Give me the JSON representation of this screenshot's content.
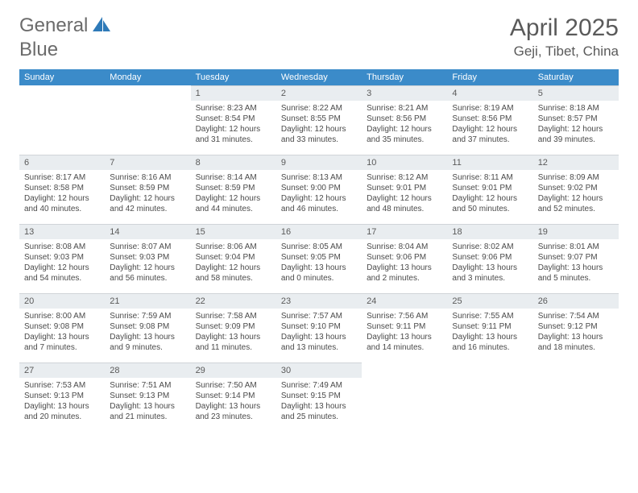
{
  "logo": {
    "text1": "General",
    "text2": "Blue"
  },
  "title": "April 2025",
  "location": "Geji, Tibet, China",
  "colors": {
    "header_bg": "#3b8bc9",
    "header_text": "#ffffff",
    "daynum_bg": "#e9edf0",
    "text": "#4a4a4a",
    "logo_blue": "#2e7ab8"
  },
  "weekdays": [
    "Sunday",
    "Monday",
    "Tuesday",
    "Wednesday",
    "Thursday",
    "Friday",
    "Saturday"
  ],
  "grid": [
    [
      null,
      null,
      {
        "n": "1",
        "sr": "8:23 AM",
        "ss": "8:54 PM",
        "dl": "12 hours and 31 minutes."
      },
      {
        "n": "2",
        "sr": "8:22 AM",
        "ss": "8:55 PM",
        "dl": "12 hours and 33 minutes."
      },
      {
        "n": "3",
        "sr": "8:21 AM",
        "ss": "8:56 PM",
        "dl": "12 hours and 35 minutes."
      },
      {
        "n": "4",
        "sr": "8:19 AM",
        "ss": "8:56 PM",
        "dl": "12 hours and 37 minutes."
      },
      {
        "n": "5",
        "sr": "8:18 AM",
        "ss": "8:57 PM",
        "dl": "12 hours and 39 minutes."
      }
    ],
    [
      {
        "n": "6",
        "sr": "8:17 AM",
        "ss": "8:58 PM",
        "dl": "12 hours and 40 minutes."
      },
      {
        "n": "7",
        "sr": "8:16 AM",
        "ss": "8:59 PM",
        "dl": "12 hours and 42 minutes."
      },
      {
        "n": "8",
        "sr": "8:14 AM",
        "ss": "8:59 PM",
        "dl": "12 hours and 44 minutes."
      },
      {
        "n": "9",
        "sr": "8:13 AM",
        "ss": "9:00 PM",
        "dl": "12 hours and 46 minutes."
      },
      {
        "n": "10",
        "sr": "8:12 AM",
        "ss": "9:01 PM",
        "dl": "12 hours and 48 minutes."
      },
      {
        "n": "11",
        "sr": "8:11 AM",
        "ss": "9:01 PM",
        "dl": "12 hours and 50 minutes."
      },
      {
        "n": "12",
        "sr": "8:09 AM",
        "ss": "9:02 PM",
        "dl": "12 hours and 52 minutes."
      }
    ],
    [
      {
        "n": "13",
        "sr": "8:08 AM",
        "ss": "9:03 PM",
        "dl": "12 hours and 54 minutes."
      },
      {
        "n": "14",
        "sr": "8:07 AM",
        "ss": "9:03 PM",
        "dl": "12 hours and 56 minutes."
      },
      {
        "n": "15",
        "sr": "8:06 AM",
        "ss": "9:04 PM",
        "dl": "12 hours and 58 minutes."
      },
      {
        "n": "16",
        "sr": "8:05 AM",
        "ss": "9:05 PM",
        "dl": "13 hours and 0 minutes."
      },
      {
        "n": "17",
        "sr": "8:04 AM",
        "ss": "9:06 PM",
        "dl": "13 hours and 2 minutes."
      },
      {
        "n": "18",
        "sr": "8:02 AM",
        "ss": "9:06 PM",
        "dl": "13 hours and 3 minutes."
      },
      {
        "n": "19",
        "sr": "8:01 AM",
        "ss": "9:07 PM",
        "dl": "13 hours and 5 minutes."
      }
    ],
    [
      {
        "n": "20",
        "sr": "8:00 AM",
        "ss": "9:08 PM",
        "dl": "13 hours and 7 minutes."
      },
      {
        "n": "21",
        "sr": "7:59 AM",
        "ss": "9:08 PM",
        "dl": "13 hours and 9 minutes."
      },
      {
        "n": "22",
        "sr": "7:58 AM",
        "ss": "9:09 PM",
        "dl": "13 hours and 11 minutes."
      },
      {
        "n": "23",
        "sr": "7:57 AM",
        "ss": "9:10 PM",
        "dl": "13 hours and 13 minutes."
      },
      {
        "n": "24",
        "sr": "7:56 AM",
        "ss": "9:11 PM",
        "dl": "13 hours and 14 minutes."
      },
      {
        "n": "25",
        "sr": "7:55 AM",
        "ss": "9:11 PM",
        "dl": "13 hours and 16 minutes."
      },
      {
        "n": "26",
        "sr": "7:54 AM",
        "ss": "9:12 PM",
        "dl": "13 hours and 18 minutes."
      }
    ],
    [
      {
        "n": "27",
        "sr": "7:53 AM",
        "ss": "9:13 PM",
        "dl": "13 hours and 20 minutes."
      },
      {
        "n": "28",
        "sr": "7:51 AM",
        "ss": "9:13 PM",
        "dl": "13 hours and 21 minutes."
      },
      {
        "n": "29",
        "sr": "7:50 AM",
        "ss": "9:14 PM",
        "dl": "13 hours and 23 minutes."
      },
      {
        "n": "30",
        "sr": "7:49 AM",
        "ss": "9:15 PM",
        "dl": "13 hours and 25 minutes."
      },
      null,
      null,
      null
    ]
  ],
  "labels": {
    "sunrise": "Sunrise:",
    "sunset": "Sunset:",
    "daylight": "Daylight:"
  }
}
